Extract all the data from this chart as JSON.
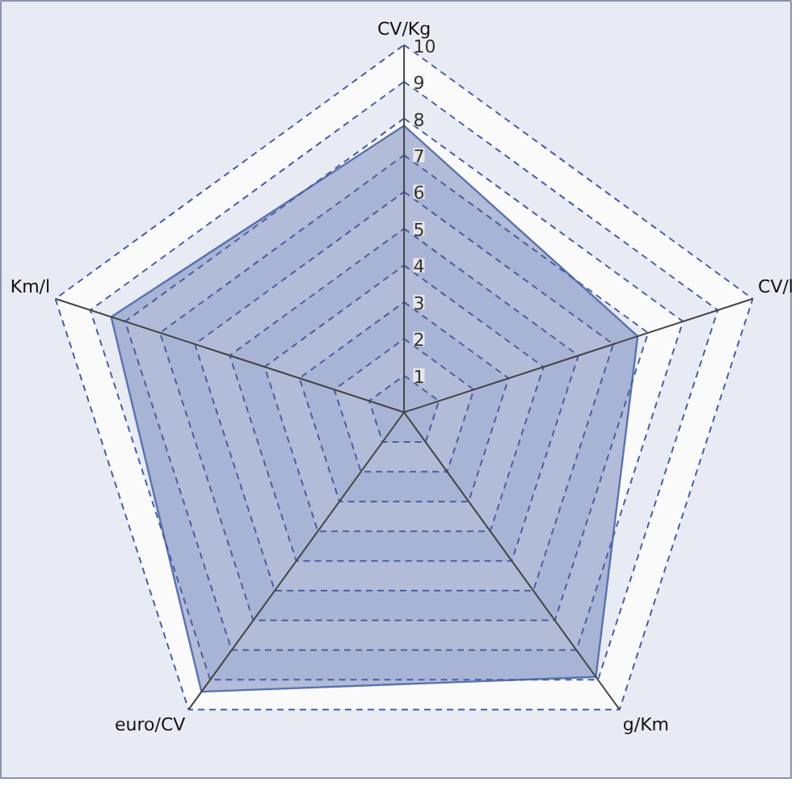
{
  "chart_data": {
    "type": "radar",
    "categories": [
      "CV/Kg",
      "CV/l",
      "g/Km",
      "euro/CV",
      "Km/l"
    ],
    "series": [
      {
        "color": "#5a72b0",
        "values": [
          7.8,
          6.7,
          8.9,
          9.4,
          8.4
        ]
      }
    ],
    "ylim": [
      0,
      10
    ],
    "yticks": [
      1,
      2,
      3,
      4,
      5,
      6,
      7,
      8,
      9,
      10
    ],
    "grid": true
  }
}
